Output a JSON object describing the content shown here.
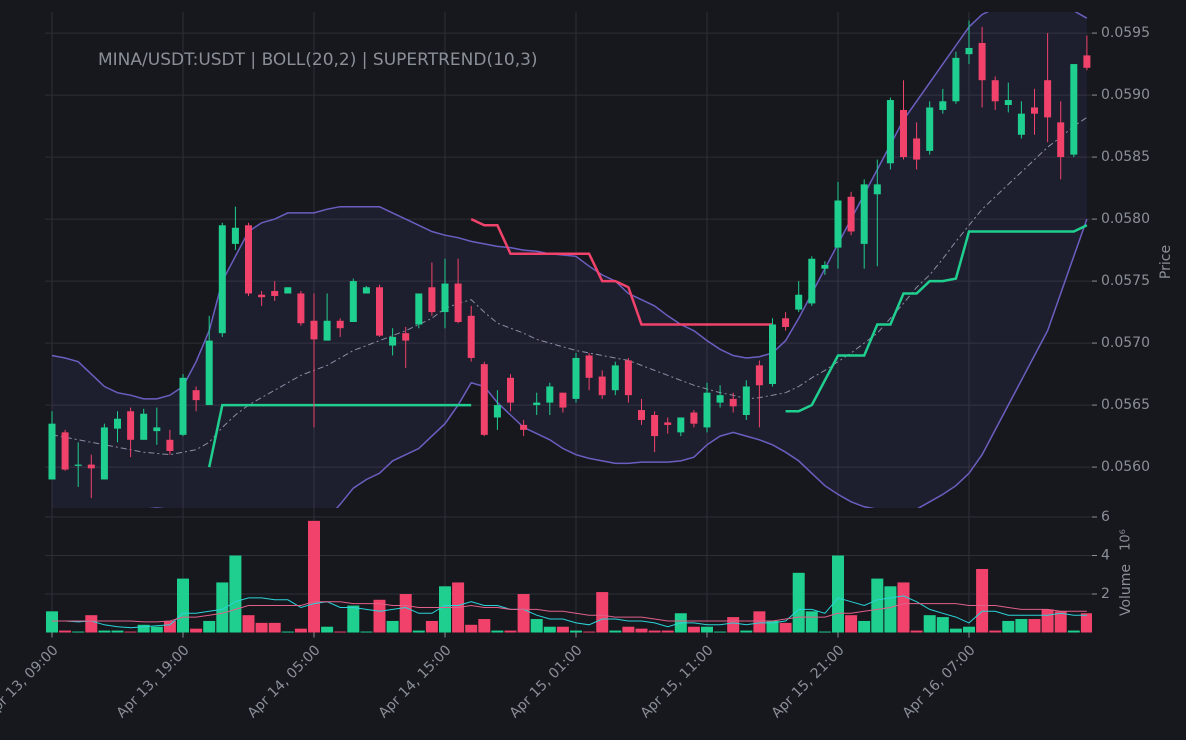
{
  "chart_data": {
    "type": "candlestick",
    "title": "MINA/USDT:USDT | BOLL(20,2) | SUPERTREND(10,3)",
    "x": [
      "Apr 13, 09:00",
      null,
      null,
      null,
      null,
      null,
      null,
      null,
      null,
      null,
      "Apr 13, 19:00",
      null,
      null,
      null,
      null,
      null,
      null,
      null,
      null,
      null,
      "Apr 14, 05:00",
      null,
      null,
      null,
      null,
      null,
      null,
      null,
      null,
      null,
      "Apr 14, 15:00",
      null,
      null,
      null,
      null,
      null,
      null,
      null,
      null,
      null,
      "Apr 15, 01:00",
      null,
      null,
      null,
      null,
      null,
      null,
      null,
      null,
      null,
      "Apr 15, 11:00",
      null,
      null,
      null,
      null,
      null,
      null,
      null,
      null,
      null,
      "Apr 15, 21:00",
      null,
      null,
      null,
      null,
      null,
      null,
      null,
      null,
      null,
      "Apr 16, 07:00",
      null,
      null,
      null,
      null,
      null,
      null,
      null,
      null,
      null
    ],
    "grid": true,
    "up_color": "#1fcf8f",
    "down_color": "#f0426a",
    "price": {
      "ylabel": "Price",
      "ylim": [
        0.05567,
        0.05967
      ],
      "yticks": [
        {
          "value": 0.056,
          "label": "0.0560"
        },
        {
          "value": 0.0565,
          "label": "0.0565"
        },
        {
          "value": 0.057,
          "label": "0.0570"
        },
        {
          "value": 0.0575,
          "label": "0.0575"
        },
        {
          "value": 0.058,
          "label": "0.0580"
        },
        {
          "value": 0.0585,
          "label": "0.0585"
        },
        {
          "value": 0.059,
          "label": "0.0590"
        },
        {
          "value": 0.0595,
          "label": "0.0595"
        }
      ],
      "open": [
        0.0559,
        0.05628,
        0.05601,
        0.05602,
        0.0559,
        0.05631,
        0.05645,
        0.05622,
        0.05629,
        0.05622,
        0.05626,
        0.05662,
        0.0565,
        0.05708,
        0.0578,
        0.05795,
        0.05739,
        0.05742,
        0.0574,
        0.0574,
        0.05718,
        0.05702,
        0.05718,
        0.05717,
        0.0574,
        0.05745,
        0.05698,
        0.05708,
        0.05715,
        0.05745,
        0.05725,
        0.05748,
        0.05722,
        0.05683,
        0.0564,
        0.05672,
        0.05634,
        0.0565,
        0.05652,
        0.0566,
        0.05655,
        0.0569,
        0.05673,
        0.05662,
        0.05686,
        0.05646,
        0.05642,
        0.05636,
        0.05628,
        0.05644,
        0.05632,
        0.05652,
        0.05655,
        0.05642,
        0.05682,
        0.05667,
        0.0572,
        0.05727,
        0.05732,
        0.0576,
        0.05777,
        0.05818,
        0.0578,
        0.0582,
        0.05845,
        0.05888,
        0.05865,
        0.05855,
        0.05888,
        0.05895,
        0.05933,
        0.05942,
        0.05912,
        0.05892,
        0.05868,
        0.0589,
        0.05912,
        0.05878,
        0.05852,
        0.05932
      ],
      "high": [
        0.05645,
        0.0563,
        0.0562,
        0.0561,
        0.05635,
        0.05645,
        0.05648,
        0.05647,
        0.05648,
        0.0563,
        0.05675,
        0.05665,
        0.05722,
        0.05797,
        0.0581,
        0.05797,
        0.05742,
        0.0575,
        0.05745,
        0.05742,
        0.0574,
        0.0574,
        0.0572,
        0.05752,
        0.05746,
        0.05747,
        0.05712,
        0.05713,
        0.0574,
        0.05765,
        0.05768,
        0.05768,
        0.0573,
        0.05685,
        0.05662,
        0.05675,
        0.05638,
        0.0566,
        0.05668,
        0.0566,
        0.05692,
        0.05692,
        0.05678,
        0.05685,
        0.05688,
        0.05655,
        0.05645,
        0.0564,
        0.0564,
        0.05646,
        0.05668,
        0.05666,
        0.0566,
        0.0567,
        0.05686,
        0.0572,
        0.05725,
        0.0575,
        0.0577,
        0.05766,
        0.0583,
        0.05822,
        0.05832,
        0.05848,
        0.05898,
        0.05912,
        0.05878,
        0.05895,
        0.05905,
        0.05935,
        0.0596,
        0.05955,
        0.05915,
        0.0591,
        0.05895,
        0.05905,
        0.0595,
        0.05895,
        0.05925,
        0.05948
      ],
      "low": [
        0.0559,
        0.05597,
        0.05584,
        0.05575,
        0.0559,
        0.0562,
        0.05608,
        0.05622,
        0.05618,
        0.0561,
        0.05625,
        0.05645,
        0.0565,
        0.05705,
        0.05775,
        0.05738,
        0.0573,
        0.05734,
        0.0574,
        0.05714,
        0.05632,
        0.05702,
        0.05705,
        0.05717,
        0.0574,
        0.05705,
        0.0569,
        0.0568,
        0.05712,
        0.05722,
        0.05712,
        0.05716,
        0.05685,
        0.05625,
        0.0563,
        0.05645,
        0.05625,
        0.05642,
        0.05642,
        0.05644,
        0.05652,
        0.05662,
        0.05655,
        0.05658,
        0.05652,
        0.05634,
        0.05612,
        0.05627,
        0.05625,
        0.05632,
        0.05628,
        0.05648,
        0.05644,
        0.05638,
        0.05632,
        0.05665,
        0.0571,
        0.05725,
        0.0573,
        0.05755,
        0.0576,
        0.05787,
        0.0576,
        0.05762,
        0.0584,
        0.05848,
        0.0584,
        0.05852,
        0.05885,
        0.05893,
        0.05925,
        0.0589,
        0.05888,
        0.05886,
        0.05865,
        0.05868,
        0.05862,
        0.05832,
        0.0585,
        0.0592
      ],
      "close": [
        0.05635,
        0.05598,
        0.05602,
        0.05599,
        0.05632,
        0.05639,
        0.05622,
        0.05643,
        0.05632,
        0.05613,
        0.05672,
        0.05654,
        0.05702,
        0.05795,
        0.05793,
        0.0574,
        0.05737,
        0.05738,
        0.05745,
        0.05716,
        0.05703,
        0.05718,
        0.05712,
        0.0575,
        0.05745,
        0.05706,
        0.05705,
        0.05702,
        0.0574,
        0.05725,
        0.05748,
        0.05717,
        0.05688,
        0.05626,
        0.0565,
        0.05652,
        0.0563,
        0.05652,
        0.05665,
        0.05648,
        0.05688,
        0.05672,
        0.05658,
        0.05682,
        0.05658,
        0.05638,
        0.05625,
        0.05634,
        0.0564,
        0.05635,
        0.0566,
        0.05658,
        0.05649,
        0.05665,
        0.05666,
        0.05715,
        0.05713,
        0.05739,
        0.05768,
        0.05763,
        0.05815,
        0.0579,
        0.05828,
        0.05828,
        0.05896,
        0.0585,
        0.05848,
        0.0589,
        0.05895,
        0.0593,
        0.05938,
        0.05912,
        0.05895,
        0.05896,
        0.05885,
        0.05885,
        0.05882,
        0.0585,
        0.05925,
        0.05922
      ],
      "bollinger": {
        "color": "#6a5fc1",
        "middle_color": "#8c8ca6",
        "fill": "#6a5fc1",
        "upper": [
          0.0569,
          0.05688,
          0.05685,
          0.05675,
          0.05665,
          0.0566,
          0.05658,
          0.05655,
          0.05655,
          0.05658,
          0.05665,
          0.05685,
          0.0571,
          0.0575,
          0.0577,
          0.0579,
          0.05797,
          0.058,
          0.05805,
          0.05805,
          0.05805,
          0.05808,
          0.0581,
          0.0581,
          0.0581,
          0.0581,
          0.05805,
          0.058,
          0.05795,
          0.0579,
          0.05787,
          0.05785,
          0.05782,
          0.0578,
          0.05778,
          0.05777,
          0.05775,
          0.05774,
          0.05772,
          0.05771,
          0.0577,
          0.05762,
          0.05755,
          0.0575,
          0.0574,
          0.05735,
          0.0573,
          0.05722,
          0.05715,
          0.0571,
          0.05702,
          0.05695,
          0.0569,
          0.05688,
          0.05689,
          0.05692,
          0.05702,
          0.0572,
          0.0574,
          0.0576,
          0.0578,
          0.058,
          0.0582,
          0.0584,
          0.0586,
          0.0588,
          0.05895,
          0.0591,
          0.05925,
          0.0594,
          0.05955,
          0.05965,
          0.0597,
          0.05972,
          0.05972,
          0.05972,
          0.0597,
          0.0597,
          0.05968,
          0.05962
        ],
        "middle": [
          0.05626,
          0.05624,
          0.05622,
          0.0562,
          0.05618,
          0.05616,
          0.05614,
          0.05612,
          0.05611,
          0.0561,
          0.05612,
          0.05614,
          0.0562,
          0.05632,
          0.05642,
          0.0565,
          0.05656,
          0.05662,
          0.05668,
          0.05674,
          0.05678,
          0.05682,
          0.05688,
          0.05694,
          0.05698,
          0.05702,
          0.05706,
          0.0571,
          0.05715,
          0.0572,
          0.05728,
          0.05732,
          0.05735,
          0.05725,
          0.05716,
          0.05712,
          0.05708,
          0.05703,
          0.057,
          0.05697,
          0.05694,
          0.05692,
          0.0569,
          0.05688,
          0.05686,
          0.05682,
          0.05678,
          0.05674,
          0.0567,
          0.05666,
          0.05663,
          0.0566,
          0.05658,
          0.05655,
          0.05656,
          0.05658,
          0.0566,
          0.05665,
          0.05672,
          0.05678,
          0.05685,
          0.05692,
          0.057,
          0.05708,
          0.0572,
          0.05732,
          0.05745,
          0.05755,
          0.05768,
          0.05782,
          0.05795,
          0.05808,
          0.05818,
          0.05828,
          0.05838,
          0.05848,
          0.05858,
          0.05866,
          0.05875,
          0.05882
        ],
        "lower": [
          0.05562,
          0.0556,
          0.05558,
          0.05557,
          0.05558,
          0.05562,
          0.05566,
          0.05566,
          0.05567,
          0.05566,
          0.05565,
          0.05562,
          0.0556,
          0.05548,
          0.0553,
          0.0551,
          0.05512,
          0.05518,
          0.05525,
          0.05535,
          0.05545,
          0.05558,
          0.0557,
          0.05583,
          0.0559,
          0.05595,
          0.05605,
          0.0561,
          0.05615,
          0.05625,
          0.05635,
          0.0565,
          0.05668,
          0.05665,
          0.05652,
          0.05642,
          0.05632,
          0.05627,
          0.05622,
          0.05615,
          0.0561,
          0.05607,
          0.05605,
          0.05603,
          0.05603,
          0.05604,
          0.05604,
          0.05604,
          0.05605,
          0.05608,
          0.05618,
          0.05625,
          0.05628,
          0.05625,
          0.05622,
          0.05618,
          0.05612,
          0.05605,
          0.05595,
          0.05585,
          0.05578,
          0.05572,
          0.05568,
          0.05566,
          0.05565,
          0.05564,
          0.05566,
          0.05572,
          0.05578,
          0.05585,
          0.05595,
          0.0561,
          0.0563,
          0.0565,
          0.0567,
          0.0569,
          0.0571,
          0.0574,
          0.0577,
          0.058
        ]
      },
      "supertrend": {
        "up_color": "#1fcf8f",
        "down_color": "#f0426a",
        "up": [
          null,
          null,
          null,
          null,
          null,
          null,
          null,
          null,
          null,
          null,
          null,
          null,
          0.056,
          0.0565,
          0.0565,
          0.0565,
          0.0565,
          0.0565,
          0.0565,
          0.0565,
          0.0565,
          0.0565,
          0.0565,
          0.0565,
          0.0565,
          0.0565,
          0.0565,
          0.0565,
          0.0565,
          0.0565,
          0.0565,
          0.0565,
          0.0565,
          null,
          null,
          null,
          null,
          null,
          null,
          null,
          null,
          null,
          null,
          null,
          null,
          null,
          null,
          null,
          null,
          null,
          null,
          null,
          null,
          null,
          null,
          null,
          0.05645,
          0.05645,
          0.0565,
          0.0567,
          0.0569,
          0.0569,
          0.0569,
          0.05715,
          0.05715,
          0.0574,
          0.0574,
          0.0575,
          0.0575,
          0.05752,
          0.0579,
          0.0579,
          0.0579,
          0.0579,
          0.0579,
          0.0579,
          0.0579,
          0.0579,
          0.0579,
          0.05795
        ],
        "down": [
          null,
          null,
          null,
          null,
          null,
          null,
          null,
          null,
          null,
          null,
          null,
          null,
          null,
          null,
          null,
          null,
          null,
          null,
          null,
          null,
          null,
          null,
          null,
          null,
          null,
          null,
          null,
          null,
          null,
          null,
          null,
          null,
          0.058,
          0.05795,
          0.05795,
          0.05772,
          0.05772,
          0.05772,
          0.05772,
          0.05772,
          0.05772,
          0.05772,
          0.0575,
          0.0575,
          0.05745,
          0.05715,
          0.05715,
          0.05715,
          0.05715,
          0.05715,
          0.05715,
          0.05715,
          0.05715,
          0.05715,
          0.05715,
          0.05715,
          null,
          null,
          null,
          null,
          null,
          null,
          null,
          null,
          null,
          null,
          null,
          null,
          null,
          null,
          null,
          null,
          null,
          null,
          null,
          null,
          null,
          null,
          null,
          null
        ]
      }
    },
    "volume": {
      "ylabel": "Volume",
      "scale_label": "10⁶",
      "ylim": [
        0,
        6
      ],
      "yticks": [
        2,
        4,
        6
      ],
      "values": [
        1.1,
        0.1,
        0.05,
        0.9,
        0.1,
        0.1,
        0.05,
        0.4,
        0.3,
        0.6,
        2.8,
        0.2,
        0.6,
        2.6,
        4.0,
        0.9,
        0.5,
        0.5,
        0.05,
        0.2,
        5.8,
        0.3,
        0.05,
        1.4,
        0.05,
        1.7,
        0.6,
        2.0,
        0.1,
        0.6,
        2.4,
        2.6,
        0.4,
        0.7,
        0.1,
        0.1,
        2.0,
        0.7,
        0.3,
        0.3,
        0.1,
        0.05,
        2.1,
        0.1,
        0.3,
        0.2,
        0.1,
        0.1,
        1.0,
        0.3,
        0.3,
        0.05,
        0.8,
        0.1,
        1.1,
        0.6,
        0.5,
        3.1,
        1.1,
        0.05,
        4.0,
        0.9,
        0.6,
        2.8,
        2.4,
        2.6,
        0.1,
        0.9,
        0.8,
        0.2,
        0.3,
        3.3,
        0.1,
        0.6,
        0.7,
        0.7,
        1.2,
        1.1,
        0.1,
        1.0
      ],
      "averages": [
        {
          "color": "#2ad4d9",
          "values": [
            0.6,
            0.6,
            0.55,
            0.6,
            0.4,
            0.3,
            0.25,
            0.3,
            0.35,
            0.4,
            1.0,
            1.0,
            1.1,
            1.2,
            1.6,
            1.8,
            1.8,
            1.7,
            1.7,
            1.3,
            1.5,
            1.6,
            1.3,
            1.3,
            1.2,
            1.1,
            1.2,
            1.3,
            1.0,
            1.0,
            1.4,
            1.4,
            1.6,
            1.4,
            1.4,
            1.2,
            1.2,
            0.9,
            0.7,
            0.7,
            0.5,
            0.4,
            0.7,
            0.7,
            0.6,
            0.6,
            0.5,
            0.3,
            0.5,
            0.5,
            0.4,
            0.4,
            0.5,
            0.4,
            0.5,
            0.5,
            0.6,
            1.2,
            1.2,
            1.0,
            1.8,
            1.6,
            1.4,
            1.7,
            1.8,
            1.9,
            1.6,
            1.2,
            1.0,
            0.8,
            0.5,
            1.1,
            1.1,
            0.9,
            0.9,
            0.9,
            0.9,
            1.0,
            0.9,
            0.9
          ]
        },
        {
          "color": "#e0608a",
          "values": [
            0.6,
            0.6,
            0.6,
            0.6,
            0.6,
            0.6,
            0.6,
            0.55,
            0.55,
            0.6,
            0.8,
            0.8,
            0.9,
            1.0,
            1.2,
            1.4,
            1.4,
            1.4,
            1.4,
            1.4,
            1.6,
            1.6,
            1.6,
            1.5,
            1.5,
            1.5,
            1.4,
            1.4,
            1.3,
            1.3,
            1.3,
            1.3,
            1.4,
            1.3,
            1.3,
            1.2,
            1.2,
            1.2,
            1.1,
            1.1,
            1.0,
            0.9,
            0.9,
            0.8,
            0.8,
            0.8,
            0.7,
            0.6,
            0.6,
            0.6,
            0.6,
            0.6,
            0.6,
            0.6,
            0.6,
            0.6,
            0.7,
            0.8,
            0.8,
            0.8,
            1.0,
            1.0,
            1.1,
            1.2,
            1.3,
            1.5,
            1.5,
            1.5,
            1.5,
            1.5,
            1.4,
            1.4,
            1.4,
            1.3,
            1.2,
            1.2,
            1.2,
            1.1,
            1.1,
            1.1
          ]
        }
      ]
    }
  }
}
